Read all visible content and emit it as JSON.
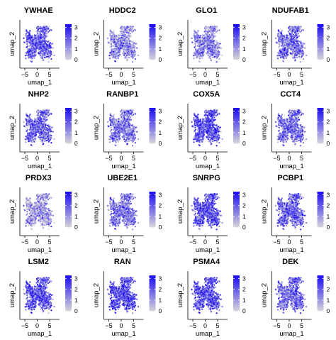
{
  "chart_data": [
    {
      "type": "scatter",
      "title": "YWHAE",
      "xlabel": "umap_1",
      "ylabel": "umap_2",
      "xticks": [
        -5,
        0,
        5
      ],
      "xlim": [
        -7,
        9
      ],
      "ylim": [
        -8,
        9
      ],
      "colorbar": {
        "ticks": [
          0,
          1,
          2,
          3
        ],
        "max": 3.3
      },
      "mean_expression": 2.1
    },
    {
      "type": "scatter",
      "title": "HDDC2",
      "xlabel": "umap_1",
      "ylabel": "umap_2",
      "xticks": [
        -5,
        0,
        5
      ],
      "xlim": [
        -7,
        9
      ],
      "ylim": [
        -8,
        9
      ],
      "colorbar": {
        "ticks": [
          0,
          1,
          2,
          3
        ],
        "max": 3.3
      },
      "mean_expression": 1.2
    },
    {
      "type": "scatter",
      "title": "GLO1",
      "xlabel": "umap_1",
      "ylabel": "umap_2",
      "xticks": [
        -5,
        0,
        5
      ],
      "xlim": [
        -7,
        9
      ],
      "ylim": [
        -8,
        9
      ],
      "colorbar": {
        "ticks": [
          0,
          1,
          2,
          3
        ],
        "max": 3.3
      },
      "mean_expression": 1.3
    },
    {
      "type": "scatter",
      "title": "NDUFAB1",
      "xlabel": "umap_1",
      "ylabel": "umap_2",
      "xticks": [
        -5,
        0,
        5
      ],
      "xlim": [
        -7,
        9
      ],
      "ylim": [
        -8,
        9
      ],
      "colorbar": {
        "ticks": [
          0,
          1,
          2,
          3
        ],
        "max": 3.3
      },
      "mean_expression": 1.7
    },
    {
      "type": "scatter",
      "title": "NHP2",
      "xlabel": "umap_1",
      "ylabel": "umap_2",
      "xticks": [
        -5,
        0,
        5
      ],
      "xlim": [
        -7,
        9
      ],
      "ylim": [
        -8,
        9
      ],
      "colorbar": {
        "ticks": [
          0,
          1,
          2,
          3
        ],
        "max": 3.3
      },
      "mean_expression": 1.9
    },
    {
      "type": "scatter",
      "title": "RANBP1",
      "xlabel": "umap_1",
      "ylabel": "umap_2",
      "xticks": [
        -5,
        0,
        5
      ],
      "xlim": [
        -7,
        9
      ],
      "ylim": [
        -8,
        9
      ],
      "colorbar": {
        "ticks": [
          0,
          1,
          2,
          3
        ],
        "max": 3.3
      },
      "mean_expression": 1.6
    },
    {
      "type": "scatter",
      "title": "COX5A",
      "xlabel": "umap_1",
      "ylabel": "umap_2",
      "xticks": [
        -5,
        0,
        5
      ],
      "xlim": [
        -7,
        9
      ],
      "ylim": [
        -8,
        9
      ],
      "colorbar": {
        "ticks": [
          0,
          1,
          2,
          3
        ],
        "max": 3.3
      },
      "mean_expression": 2.2
    },
    {
      "type": "scatter",
      "title": "CCT4",
      "xlabel": "umap_1",
      "ylabel": "umap_2",
      "xticks": [
        -5,
        0,
        5
      ],
      "xlim": [
        -7,
        9
      ],
      "ylim": [
        -8,
        9
      ],
      "colorbar": {
        "ticks": [
          0,
          1,
          2,
          3
        ],
        "max": 3.3
      },
      "mean_expression": 1.8
    },
    {
      "type": "scatter",
      "title": "PRDX3",
      "xlabel": "umap_1",
      "ylabel": "umap_2",
      "xticks": [
        -5,
        0,
        5
      ],
      "xlim": [
        -7,
        9
      ],
      "ylim": [
        -8,
        9
      ],
      "colorbar": {
        "ticks": [
          0,
          1,
          2,
          3
        ],
        "max": 3.3
      },
      "mean_expression": 1.0
    },
    {
      "type": "scatter",
      "title": "UBE2E1",
      "xlabel": "umap_1",
      "ylabel": "umap_2",
      "xticks": [
        -5,
        0,
        5
      ],
      "xlim": [
        -7,
        9
      ],
      "ylim": [
        -8,
        9
      ],
      "colorbar": {
        "ticks": [
          0,
          1,
          2,
          3
        ],
        "max": 3.3
      },
      "mean_expression": 1.6
    },
    {
      "type": "scatter",
      "title": "SNRPG",
      "xlabel": "umap_1",
      "ylabel": "umap_2",
      "xticks": [
        -5,
        0,
        5
      ],
      "xlim": [
        -7,
        9
      ],
      "ylim": [
        -8,
        9
      ],
      "colorbar": {
        "ticks": [
          0,
          1,
          2,
          3
        ],
        "max": 3.3
      },
      "mean_expression": 2.2
    },
    {
      "type": "scatter",
      "title": "PCBP1",
      "xlabel": "umap_1",
      "ylabel": "umap_2",
      "xticks": [
        -5,
        0,
        5
      ],
      "xlim": [
        -7,
        9
      ],
      "ylim": [
        -8,
        9
      ],
      "colorbar": {
        "ticks": [
          0,
          1,
          2,
          3
        ],
        "max": 3.3
      },
      "mean_expression": 2.0
    },
    {
      "type": "scatter",
      "title": "LSM2",
      "xlabel": "umap_1",
      "ylabel": "umap_2",
      "xticks": [
        -5,
        0,
        5
      ],
      "xlim": [
        -7,
        9
      ],
      "ylim": [
        -8,
        9
      ],
      "colorbar": {
        "ticks": [
          0,
          1,
          2,
          3
        ],
        "max": 3.3
      },
      "mean_expression": 2.2
    },
    {
      "type": "scatter",
      "title": "RAN",
      "xlabel": "umap_1",
      "ylabel": "umap_2",
      "xticks": [
        -5,
        0,
        5
      ],
      "xlim": [
        -7,
        9
      ],
      "ylim": [
        -8,
        9
      ],
      "colorbar": {
        "ticks": [
          0,
          1,
          2,
          3
        ],
        "max": 3.3
      },
      "mean_expression": 2.4
    },
    {
      "type": "scatter",
      "title": "PSMA4",
      "xlabel": "umap_1",
      "ylabel": "umap_2",
      "xticks": [
        -5,
        0,
        5
      ],
      "xlim": [
        -7,
        9
      ],
      "ylim": [
        -8,
        9
      ],
      "colorbar": {
        "ticks": [
          0,
          1,
          2,
          3
        ],
        "max": 3.3
      },
      "mean_expression": 2.1
    },
    {
      "type": "scatter",
      "title": "DEK",
      "xlabel": "umap_1",
      "ylabel": "umap_2",
      "xticks": [
        -5,
        0,
        5
      ],
      "xlim": [
        -7,
        9
      ],
      "ylim": [
        -8,
        9
      ],
      "colorbar": {
        "ticks": [
          0,
          1,
          2,
          3
        ],
        "max": 3.3
      },
      "mean_expression": 1.9
    }
  ],
  "colors": {
    "low": "#d9d9d9",
    "high": "#1e0ff0",
    "axis": "#000000",
    "text": "#000000"
  }
}
